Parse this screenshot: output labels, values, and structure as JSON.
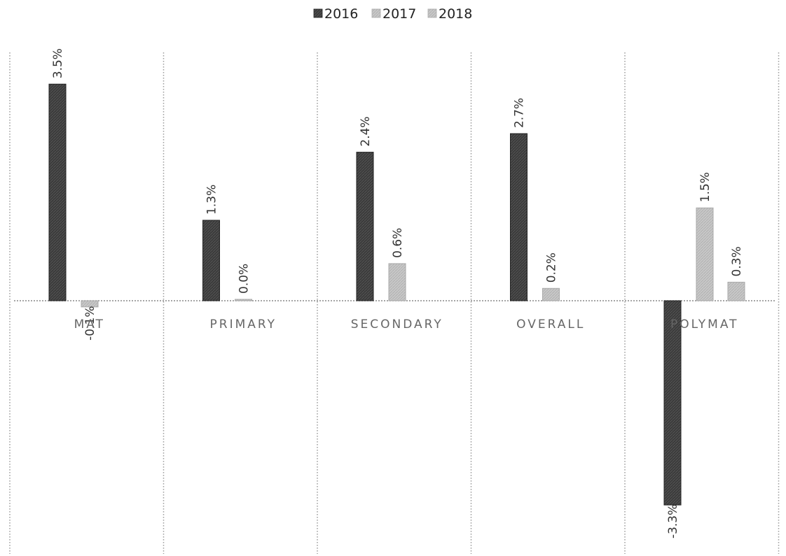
{
  "chart_data": {
    "type": "bar",
    "categories": [
      "MAT",
      "PRIMARY",
      "SECONDARY",
      "OVERALL",
      "POLYMAT"
    ],
    "series": [
      {
        "name": "2016",
        "values": [
          3.5,
          1.3,
          2.4,
          2.7,
          -3.3
        ],
        "color": "#3a3a3a"
      },
      {
        "name": "2017",
        "values": [
          -0.1,
          0.0,
          0.6,
          0.2,
          1.5
        ],
        "color": "#c6c6c6"
      },
      {
        "name": "2018",
        "values": [
          null,
          null,
          null,
          null,
          0.3
        ],
        "color": "#c6c6c6"
      }
    ],
    "data_labels": [
      [
        "3.5%",
        "1.3%",
        "2.4%",
        "2.7%",
        "-3.3%"
      ],
      [
        "-0.1%",
        "0.0%",
        "0.6%",
        "0.2%",
        "1.5%"
      ],
      [
        "",
        "",
        "",
        "",
        "0.3%"
      ]
    ],
    "legend_placement": "top-center",
    "value_unit": "%",
    "grid": {
      "vertical_dotted_separators": true,
      "horizontal": false
    },
    "ylim": [
      -3.3,
      3.6
    ]
  }
}
